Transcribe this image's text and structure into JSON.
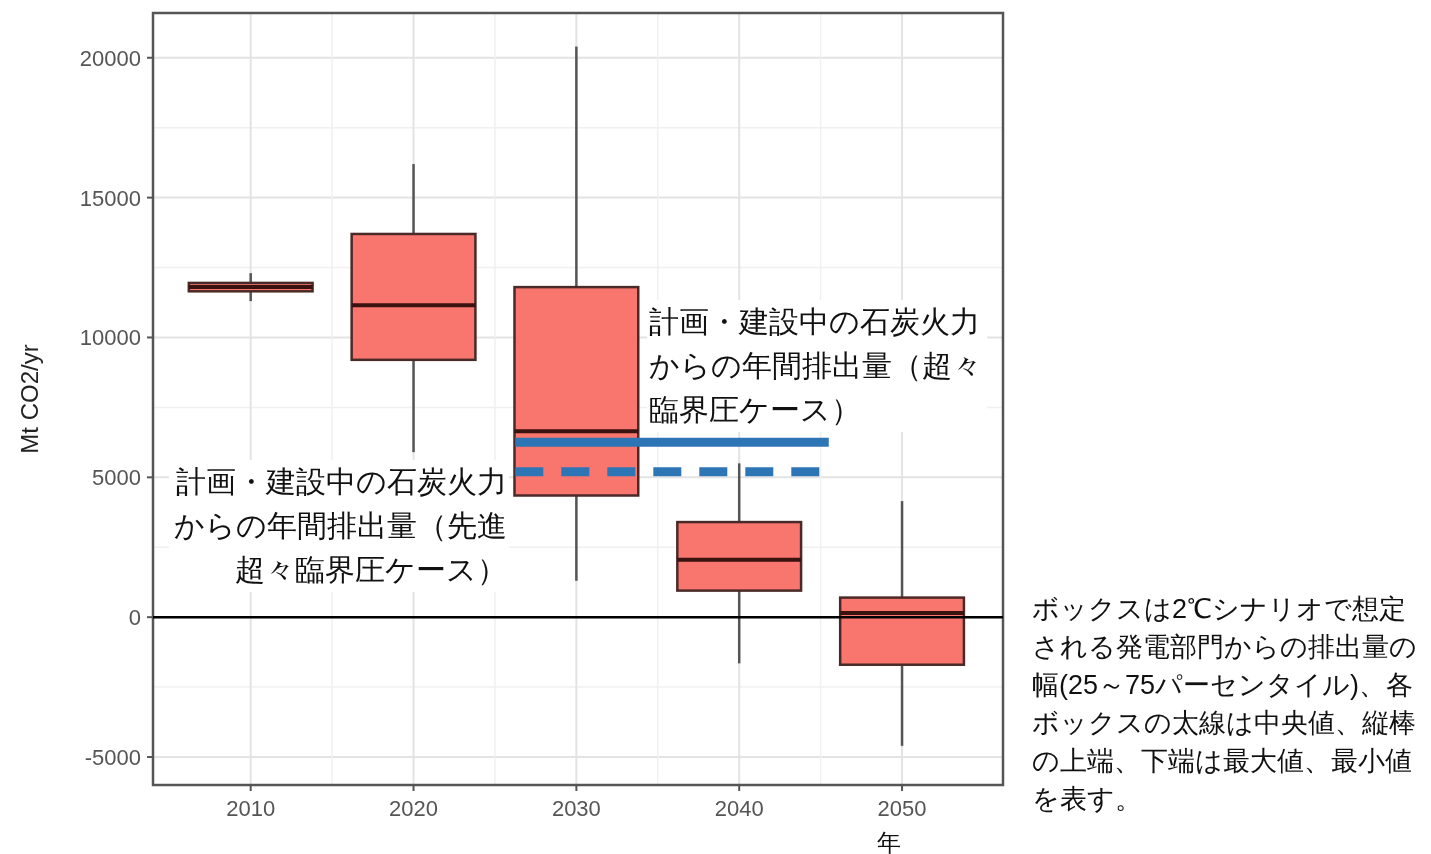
{
  "chart_data": {
    "type": "box",
    "categories": [
      "2010",
      "2020",
      "2030",
      "2040",
      "2050"
    ],
    "series": [
      {
        "color": "#f8766d",
        "boxes": [
          {
            "low": 11300,
            "q1": 11650,
            "median": 11800,
            "q3": 11950,
            "high": 12300
          },
          {
            "low": 5900,
            "q1": 9200,
            "median": 11150,
            "q3": 13700,
            "high": 16200
          },
          {
            "low": 1300,
            "q1": 4350,
            "median": 6650,
            "q3": 11800,
            "high": 20400
          },
          {
            "low": -1650,
            "q1": 950,
            "median": 2050,
            "q3": 3400,
            "high": 5500
          },
          {
            "low": -4600,
            "q1": -1700,
            "median": 150,
            "q3": 700,
            "high": 4150
          }
        ]
      }
    ],
    "ylim": [
      -6000,
      21600
    ],
    "yticks": [
      -5000,
      0,
      5000,
      10000,
      15000,
      20000
    ],
    "xlabel": "年",
    "ylabel": "Mt CO2/yr",
    "grid": true,
    "ref_lines": [
      {
        "axis": "y",
        "value": 0,
        "color": "#000000"
      },
      {
        "axis": "y",
        "value": 6250,
        "label": "計画・建設中の石炭火力からの年間排出量（超々臨界圧ケース）",
        "color": "#2e75b6",
        "line_style": "solid"
      },
      {
        "axis": "y",
        "value": 5200,
        "label": "計画・建設中の石炭火力からの年間排出量（先進超々臨界圧ケース）",
        "color": "#2e75b6",
        "line_style": "dashed"
      }
    ],
    "annotations": [
      "ボックスは2℃シナリオで想定される発電部門からの排出量の幅(25～75パーセンタイル)、各ボックスの太線は中央値、縦棒の上端、下端は最大値、最小値を表す。"
    ]
  }
}
